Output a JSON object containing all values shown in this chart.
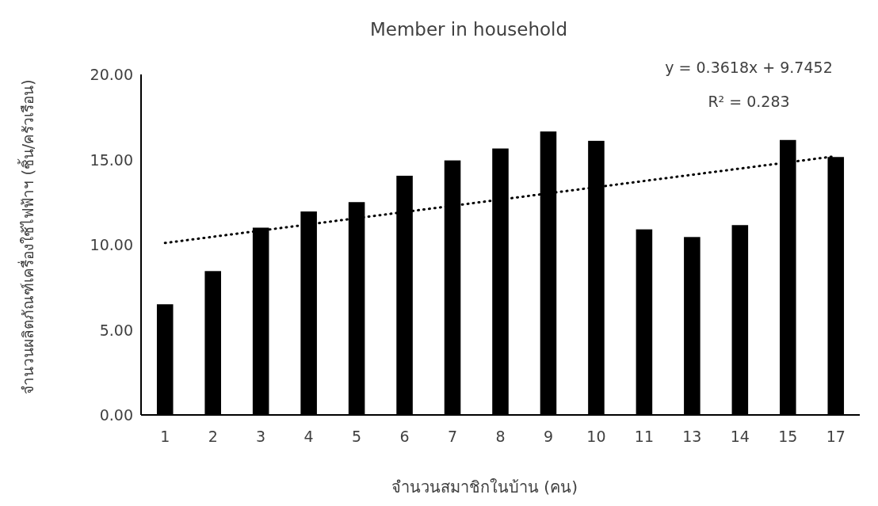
{
  "chart_data": {
    "type": "bar",
    "title": "Member in household",
    "xlabel": "จำนวนสมาชิกในบ้าน (คน)",
    "ylabel": "จำนวนผลิตภัณฑ์เครื่องใช้ไฟฟ้าฯ (ชิ้น/ครัวเรือน)",
    "categories": [
      "1",
      "2",
      "3",
      "4",
      "5",
      "6",
      "7",
      "8",
      "9",
      "10",
      "11",
      "13",
      "14",
      "15",
      "17"
    ],
    "series": [
      {
        "color": "#000000",
        "values": [
          6.5,
          8.45,
          11.0,
          11.95,
          12.5,
          14.05,
          14.95,
          15.65,
          16.65,
          16.1,
          10.9,
          10.45,
          11.15,
          16.15,
          15.15
        ]
      },
      {
        "type": "line",
        "x": [
          "1",
          "17"
        ],
        "values": [
          10.1,
          15.2
        ],
        "color": "#000000",
        "line_style": "dotted"
      }
    ],
    "ylim": [
      0,
      20
    ],
    "yticks": [
      {
        "value": 0,
        "label": "0.00"
      },
      {
        "value": 5,
        "label": "5.00"
      },
      {
        "value": 10,
        "label": "10.00"
      },
      {
        "value": 15,
        "label": "15.00"
      },
      {
        "value": 20,
        "label": "20.00"
      }
    ],
    "annotations": [
      "y = 0.3618x + 9.7452",
      "R² = 0.283"
    ],
    "grid": false
  }
}
